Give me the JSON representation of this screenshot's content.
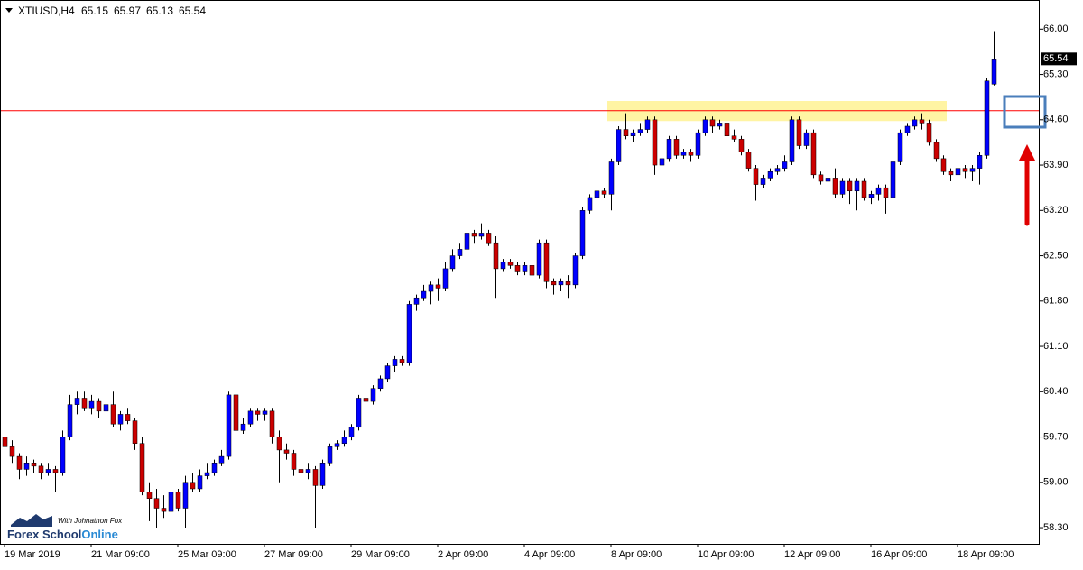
{
  "chart_data": {
    "type": "candlestick",
    "symbol": "XTIUSD,H4",
    "up_color": "#0000ff",
    "down_color": "#cc0000",
    "wick_color": "#000000",
    "ylim": [
      58.05,
      66.45
    ],
    "yticks": [
      {
        "value": 58.3,
        "label": "58.30"
      },
      {
        "value": 59.0,
        "label": "59.00"
      },
      {
        "value": 59.7,
        "label": "59.70"
      },
      {
        "value": 60.4,
        "label": "60.40"
      },
      {
        "value": 61.1,
        "label": "61.10"
      },
      {
        "value": 61.8,
        "label": "61.80"
      },
      {
        "value": 62.5,
        "label": "62.50"
      },
      {
        "value": 63.2,
        "label": "63.20"
      },
      {
        "value": 63.9,
        "label": "63.90"
      },
      {
        "value": 64.6,
        "label": "64.60"
      },
      {
        "value": 65.3,
        "label": "65.30"
      },
      {
        "value": 66.0,
        "label": "66.00"
      }
    ],
    "hline": {
      "value": 64.74,
      "color": "#ff0000"
    },
    "zone": {
      "from": 64.58,
      "to": 64.89,
      "start": 84,
      "end": 130,
      "color": "#fff4a3"
    },
    "categories": [
      "19 Mar 2019",
      null,
      null,
      null,
      null,
      null,
      null,
      null,
      null,
      null,
      null,
      null,
      "21 Mar 09:00",
      null,
      null,
      null,
      null,
      null,
      null,
      null,
      null,
      null,
      null,
      null,
      "25 Mar 09:00",
      null,
      null,
      null,
      null,
      null,
      null,
      null,
      null,
      null,
      null,
      null,
      "27 Mar 09:00",
      null,
      null,
      null,
      null,
      null,
      null,
      null,
      null,
      null,
      null,
      null,
      "29 Mar 09:00",
      null,
      null,
      null,
      null,
      null,
      null,
      null,
      null,
      null,
      null,
      null,
      "2 Apr 09:00",
      null,
      null,
      null,
      null,
      null,
      null,
      null,
      null,
      null,
      null,
      null,
      "4 Apr 09:00",
      null,
      null,
      null,
      null,
      null,
      null,
      null,
      null,
      null,
      null,
      null,
      "8 Apr 09:00",
      null,
      null,
      null,
      null,
      null,
      null,
      null,
      null,
      null,
      null,
      null,
      "10 Apr 09:00",
      null,
      null,
      null,
      null,
      null,
      null,
      null,
      null,
      null,
      null,
      null,
      "12 Apr 09:00",
      null,
      null,
      null,
      null,
      null,
      null,
      null,
      null,
      null,
      null,
      null,
      "16 Apr 09:00",
      null,
      null,
      null,
      null,
      null,
      null,
      null,
      null,
      null,
      null,
      null,
      "18 Apr 09:00",
      null,
      null,
      null,
      null,
      null
    ],
    "candles": [
      [
        59.7,
        59.85,
        59.4,
        59.55
      ],
      [
        59.55,
        59.65,
        59.3,
        59.4
      ],
      [
        59.4,
        59.45,
        59.05,
        59.2
      ],
      [
        59.2,
        59.4,
        59.1,
        59.3
      ],
      [
        59.3,
        59.35,
        59.15,
        59.25
      ],
      [
        59.25,
        59.3,
        59.05,
        59.15
      ],
      [
        59.15,
        59.3,
        59.1,
        59.2
      ],
      [
        59.2,
        59.25,
        58.85,
        59.15
      ],
      [
        59.15,
        59.8,
        59.1,
        59.7
      ],
      [
        59.7,
        60.35,
        59.65,
        60.2
      ],
      [
        60.2,
        60.4,
        60.05,
        60.3
      ],
      [
        60.3,
        60.4,
        60.1,
        60.15
      ],
      [
        60.15,
        60.35,
        60.05,
        60.25
      ],
      [
        60.25,
        60.3,
        60.0,
        60.1
      ],
      [
        60.1,
        60.3,
        60.05,
        60.2
      ],
      [
        60.2,
        60.4,
        59.85,
        59.9
      ],
      [
        59.9,
        60.1,
        59.8,
        60.05
      ],
      [
        60.05,
        60.15,
        59.9,
        59.95
      ],
      [
        59.95,
        60.0,
        59.5,
        59.6
      ],
      [
        59.6,
        59.7,
        58.8,
        58.85
      ],
      [
        58.85,
        59.0,
        58.4,
        58.75
      ],
      [
        58.75,
        58.9,
        58.3,
        58.6
      ],
      [
        58.6,
        58.8,
        58.45,
        58.55
      ],
      [
        58.55,
        59.0,
        58.5,
        58.85
      ],
      [
        58.85,
        58.9,
        58.55,
        58.6
      ],
      [
        58.6,
        59.1,
        58.3,
        59.0
      ],
      [
        59.0,
        59.15,
        58.85,
        58.9
      ],
      [
        58.9,
        59.2,
        58.85,
        59.1
      ],
      [
        59.1,
        59.3,
        59.05,
        59.15
      ],
      [
        59.15,
        59.35,
        59.1,
        59.3
      ],
      [
        59.3,
        59.5,
        59.25,
        59.4
      ],
      [
        59.4,
        60.4,
        59.35,
        60.35
      ],
      [
        60.35,
        60.45,
        59.7,
        59.8
      ],
      [
        59.8,
        60.0,
        59.75,
        59.9
      ],
      [
        59.9,
        60.15,
        59.85,
        60.1
      ],
      [
        60.1,
        60.15,
        59.95,
        60.05
      ],
      [
        60.05,
        60.15,
        59.95,
        60.1
      ],
      [
        60.1,
        60.15,
        59.6,
        59.7
      ],
      [
        59.7,
        59.8,
        59.0,
        59.5
      ],
      [
        59.5,
        59.6,
        59.35,
        59.45
      ],
      [
        59.45,
        59.5,
        59.1,
        59.2
      ],
      [
        59.2,
        59.3,
        59.1,
        59.15
      ],
      [
        59.15,
        59.3,
        59.05,
        59.2
      ],
      [
        59.2,
        59.25,
        58.3,
        58.95
      ],
      [
        58.95,
        59.35,
        58.9,
        59.3
      ],
      [
        59.3,
        59.6,
        59.25,
        59.55
      ],
      [
        59.55,
        59.65,
        59.5,
        59.6
      ],
      [
        59.6,
        59.8,
        59.55,
        59.7
      ],
      [
        59.7,
        59.9,
        59.65,
        59.85
      ],
      [
        59.85,
        60.35,
        59.8,
        60.3
      ],
      [
        60.3,
        60.5,
        60.15,
        60.25
      ],
      [
        60.25,
        60.5,
        60.2,
        60.45
      ],
      [
        60.45,
        60.65,
        60.4,
        60.6
      ],
      [
        60.6,
        60.85,
        60.55,
        60.8
      ],
      [
        60.8,
        60.95,
        60.7,
        60.9
      ],
      [
        60.9,
        60.95,
        60.8,
        60.85
      ],
      [
        60.85,
        61.8,
        60.8,
        61.75
      ],
      [
        61.75,
        61.9,
        61.65,
        61.85
      ],
      [
        61.85,
        62.05,
        61.8,
        61.95
      ],
      [
        61.95,
        62.1,
        61.75,
        62.05
      ],
      [
        62.05,
        62.15,
        61.8,
        62.0
      ],
      [
        62.0,
        62.4,
        61.95,
        62.3
      ],
      [
        62.3,
        62.6,
        62.25,
        62.5
      ],
      [
        62.5,
        62.7,
        62.45,
        62.6
      ],
      [
        62.6,
        62.9,
        62.55,
        62.85
      ],
      [
        62.85,
        62.9,
        62.7,
        62.8
      ],
      [
        62.8,
        63.0,
        62.75,
        62.85
      ],
      [
        62.85,
        62.9,
        62.65,
        62.7
      ],
      [
        62.7,
        62.8,
        61.85,
        62.3
      ],
      [
        62.3,
        62.45,
        62.25,
        62.4
      ],
      [
        62.4,
        62.45,
        62.3,
        62.35
      ],
      [
        62.35,
        62.4,
        62.2,
        62.25
      ],
      [
        62.25,
        62.4,
        62.2,
        62.35
      ],
      [
        62.35,
        62.4,
        62.1,
        62.2
      ],
      [
        62.2,
        62.75,
        62.15,
        62.7
      ],
      [
        62.7,
        62.75,
        62.0,
        62.1
      ],
      [
        62.1,
        62.15,
        61.9,
        62.05
      ],
      [
        62.05,
        62.15,
        61.95,
        62.1
      ],
      [
        62.1,
        62.2,
        61.85,
        62.05
      ],
      [
        62.05,
        62.55,
        62.0,
        62.5
      ],
      [
        62.5,
        63.25,
        62.45,
        63.2
      ],
      [
        63.2,
        63.45,
        63.15,
        63.4
      ],
      [
        63.4,
        63.55,
        63.35,
        63.5
      ],
      [
        63.5,
        63.55,
        63.4,
        63.45
      ],
      [
        63.45,
        64.0,
        63.2,
        63.95
      ],
      [
        63.95,
        64.5,
        63.9,
        64.45
      ],
      [
        64.45,
        64.7,
        64.3,
        64.35
      ],
      [
        64.35,
        64.45,
        64.25,
        64.4
      ],
      [
        64.4,
        64.55,
        64.35,
        64.45
      ],
      [
        64.45,
        64.65,
        64.4,
        64.6
      ],
      [
        64.6,
        64.65,
        63.75,
        63.9
      ],
      [
        63.9,
        64.15,
        63.65,
        64.0
      ],
      [
        64.0,
        64.35,
        63.95,
        64.3
      ],
      [
        64.3,
        64.35,
        64.0,
        64.05
      ],
      [
        64.05,
        64.15,
        64.0,
        64.1
      ],
      [
        64.1,
        64.15,
        63.95,
        64.05
      ],
      [
        64.05,
        64.45,
        64.0,
        64.4
      ],
      [
        64.4,
        64.65,
        64.35,
        64.6
      ],
      [
        64.6,
        64.65,
        64.4,
        64.5
      ],
      [
        64.5,
        64.6,
        64.45,
        64.55
      ],
      [
        64.55,
        64.6,
        64.3,
        64.35
      ],
      [
        64.35,
        64.45,
        64.25,
        64.3
      ],
      [
        64.3,
        64.35,
        64.05,
        64.1
      ],
      [
        64.1,
        64.15,
        63.8,
        63.85
      ],
      [
        63.85,
        63.9,
        63.35,
        63.6
      ],
      [
        63.6,
        63.75,
        63.55,
        63.7
      ],
      [
        63.7,
        63.85,
        63.65,
        63.8
      ],
      [
        63.8,
        63.9,
        63.75,
        63.85
      ],
      [
        63.85,
        64.05,
        63.8,
        63.95
      ],
      [
        63.95,
        64.65,
        63.9,
        64.6
      ],
      [
        64.6,
        64.65,
        64.15,
        64.2
      ],
      [
        64.2,
        64.45,
        64.15,
        64.4
      ],
      [
        64.4,
        64.45,
        63.7,
        63.75
      ],
      [
        63.75,
        63.8,
        63.6,
        63.65
      ],
      [
        63.65,
        63.75,
        63.6,
        63.7
      ],
      [
        63.7,
        63.85,
        63.4,
        63.45
      ],
      [
        63.45,
        63.7,
        63.4,
        63.65
      ],
      [
        63.65,
        63.7,
        63.3,
        63.5
      ],
      [
        63.5,
        63.7,
        63.2,
        63.65
      ],
      [
        63.65,
        63.7,
        63.35,
        63.4
      ],
      [
        63.4,
        63.5,
        63.3,
        63.45
      ],
      [
        63.45,
        63.6,
        63.35,
        63.55
      ],
      [
        63.55,
        63.6,
        63.15,
        63.4
      ],
      [
        63.4,
        64.0,
        63.35,
        63.95
      ],
      [
        63.95,
        64.45,
        63.9,
        64.4
      ],
      [
        64.4,
        64.55,
        64.35,
        64.5
      ],
      [
        64.5,
        64.65,
        64.45,
        64.6
      ],
      [
        64.6,
        64.7,
        64.45,
        64.55
      ],
      [
        64.55,
        64.6,
        64.2,
        64.25
      ],
      [
        64.25,
        64.3,
        63.95,
        64.0
      ],
      [
        64.0,
        64.05,
        63.75,
        63.8
      ],
      [
        63.8,
        63.85,
        63.65,
        63.75
      ],
      [
        63.75,
        63.9,
        63.7,
        63.85
      ],
      [
        63.85,
        63.9,
        63.7,
        63.8
      ],
      [
        63.8,
        63.9,
        63.65,
        63.85
      ],
      [
        63.85,
        64.1,
        63.6,
        64.05
      ],
      [
        64.05,
        65.25,
        64.0,
        65.2
      ],
      [
        65.15,
        65.97,
        65.13,
        65.54
      ]
    ]
  },
  "logo": {
    "brand": "Forex School",
    "brand_accent": "Online",
    "tagline": "With Johnathon Fox"
  }
}
